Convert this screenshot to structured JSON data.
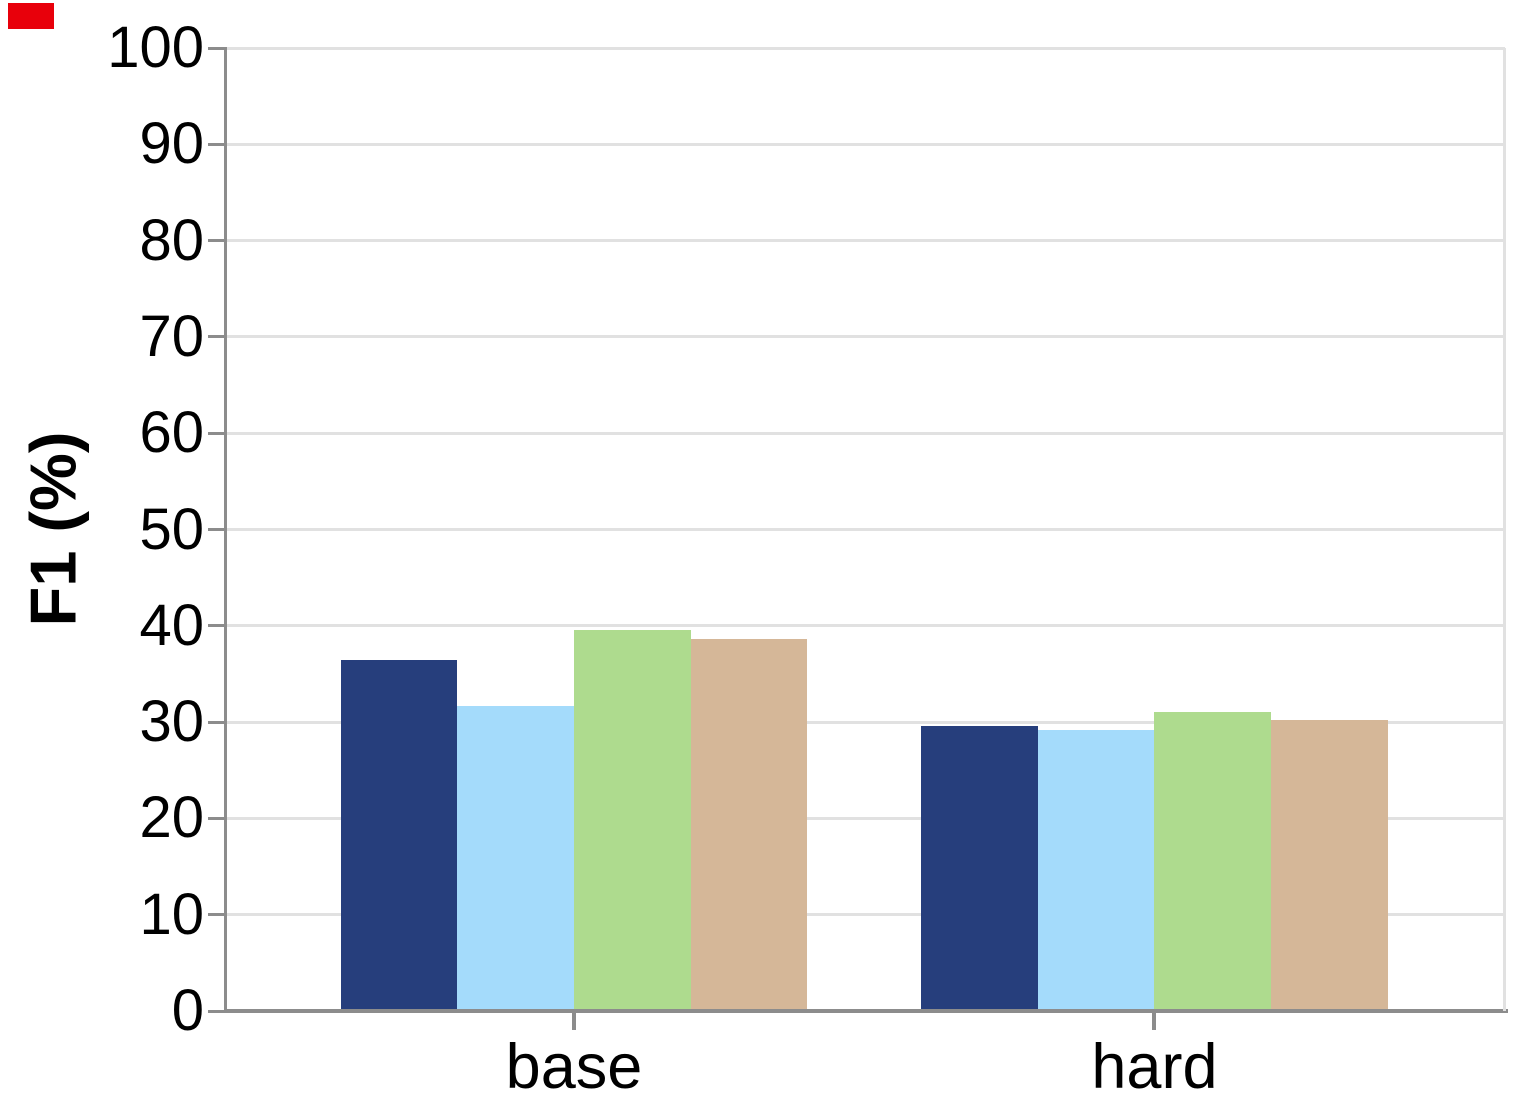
{
  "marker": {
    "color": "#e8000b"
  },
  "chart_data": {
    "type": "bar",
    "title": "",
    "xlabel": "",
    "ylabel": "F1 (%)",
    "categories": [
      "base",
      "hard"
    ],
    "series": [
      {
        "name": "navy",
        "color": "#263e7c",
        "values": [
          36.4,
          29.6
        ]
      },
      {
        "name": "light-blue",
        "color": "#a4dbfb",
        "values": [
          31.7,
          29.2
        ]
      },
      {
        "name": "green",
        "color": "#aedb8e",
        "values": [
          39.6,
          31.0
        ]
      },
      {
        "name": "tan",
        "color": "#d5b798",
        "values": [
          38.6,
          30.2
        ]
      }
    ],
    "ylim": [
      0,
      100
    ],
    "yticks": [
      0,
      10,
      20,
      30,
      40,
      50,
      60,
      70,
      80,
      90,
      100
    ],
    "grid": true,
    "legend": "none"
  }
}
